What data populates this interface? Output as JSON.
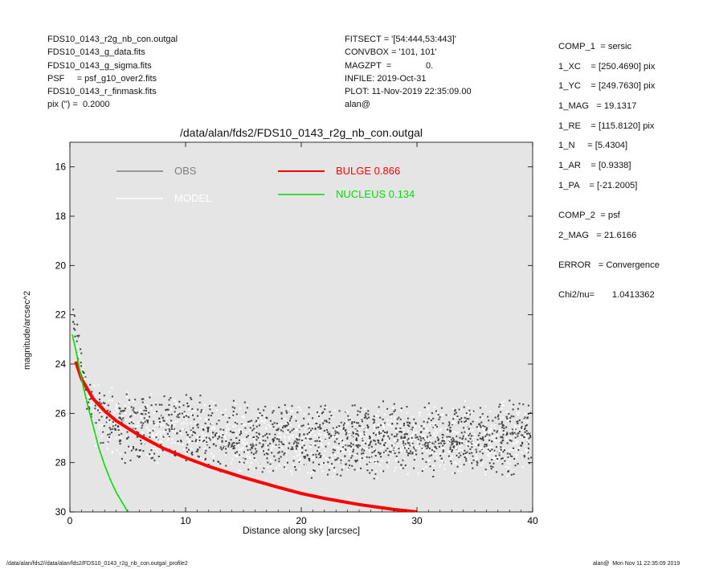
{
  "header_left": [
    "FDS10_0143_r2g_nb_con.outgal",
    "FDS10_0143_g_data.fits",
    "FDS10_0143_g_sigma.fits",
    "PSF     = psf_g10_over2.fits",
    "FDS10_0143_r_finmask.fits",
    "pix (\") =  0.2000"
  ],
  "header_mid": [
    "FITSECT = '[54:444,53:443]'",
    "CONVBOX = '101, 101'",
    "MAGZPT  =              0.",
    "INFILE: 2019-Oct-31",
    "PLOT: 11-Nov-2019 22:35:09.00",
    "alan@"
  ],
  "side_params": [
    "COMP_1  = sersic",
    "1_XC    = [250.4690] pix",
    "1_YC    = [249.7630] pix",
    "1_MAG   = 19.1317",
    "1_RE    = [115.8120] pix",
    "1_N     = [5.4304]",
    "1_AR    = [0.9338]",
    "1_PA    = [-21.2005]",
    "COMP_2  = psf",
    "2_MAG   = 21.6166",
    "ERROR   = Convergence",
    "Chi2/nu=       1.0413362"
  ],
  "footer_left": "/data/alan/fds2//data/alan/fds2/FDS10_0143_r2g_nb_con.outgal_profile2",
  "footer_right": "alan@  Mon Nov 11 22:35:09 2019",
  "colors": {
    "panel_bg": "#e5e5e5",
    "obs": "#7f7f7f",
    "model": "#ffffff",
    "bulge": "#ff0000",
    "nucleus": "#00dd00",
    "dark_points": "#404040"
  },
  "chart_data": {
    "type": "scatter",
    "title": "/data/alan/fds2/FDS10_0143_r2g_nb_con.outgal",
    "xlabel": "Distance along sky [arcsec]",
    "ylabel": "magnitude/arcsec^2",
    "xlim": [
      0,
      40
    ],
    "ylim": [
      30,
      15
    ],
    "xticks": [
      0,
      10,
      20,
      30,
      40
    ],
    "yticks": [
      16,
      18,
      20,
      22,
      24,
      26,
      28,
      30
    ],
    "legend": [
      {
        "label": "OBS",
        "color": "#7f7f7f"
      },
      {
        "label": "MODEL",
        "color": "#ffffff"
      },
      {
        "label": "BULGE  0.866",
        "color": "#ff0000"
      },
      {
        "label": "NUCLEUS  0.134",
        "color": "#00dd00"
      }
    ],
    "series": [
      {
        "name": "BULGE  0.866",
        "type": "line",
        "x": [
          0.5,
          1,
          2,
          3,
          4,
          5,
          6,
          8,
          10,
          12,
          15,
          18,
          20,
          22,
          25,
          28,
          30
        ],
        "y": [
          23.9,
          24.6,
          25.4,
          25.9,
          26.3,
          26.6,
          26.9,
          27.4,
          27.8,
          28.15,
          28.6,
          29.0,
          29.25,
          29.45,
          29.7,
          29.9,
          30.0
        ]
      },
      {
        "name": "NUCLEUS  0.134",
        "type": "line",
        "x": [
          0.2,
          0.5,
          1,
          1.5,
          2,
          2.5,
          3,
          3.5,
          4,
          4.5,
          5
        ],
        "y": [
          22.8,
          23.4,
          24.6,
          25.6,
          26.5,
          27.4,
          28.1,
          28.7,
          29.2,
          29.6,
          30.0
        ]
      },
      {
        "name": "OBS",
        "type": "scatter",
        "x": [
          0.3,
          0.6,
          1,
          1.5,
          2,
          3,
          4,
          5,
          6,
          7,
          8,
          9,
          10,
          12,
          14,
          16,
          18,
          20,
          22,
          24,
          26,
          28,
          30,
          32,
          34,
          36,
          38,
          39.5
        ],
        "y": [
          22.3,
          23.0,
          24.4,
          25.2,
          25.8,
          26.2,
          26.4,
          26.5,
          26.6,
          26.7,
          26.6,
          26.5,
          26.6,
          26.8,
          26.9,
          27.0,
          27.0,
          27.1,
          27.1,
          27.0,
          27.1,
          27.0,
          27.1,
          27.0,
          27.0,
          27.1,
          27.0,
          27.0
        ]
      }
    ]
  }
}
